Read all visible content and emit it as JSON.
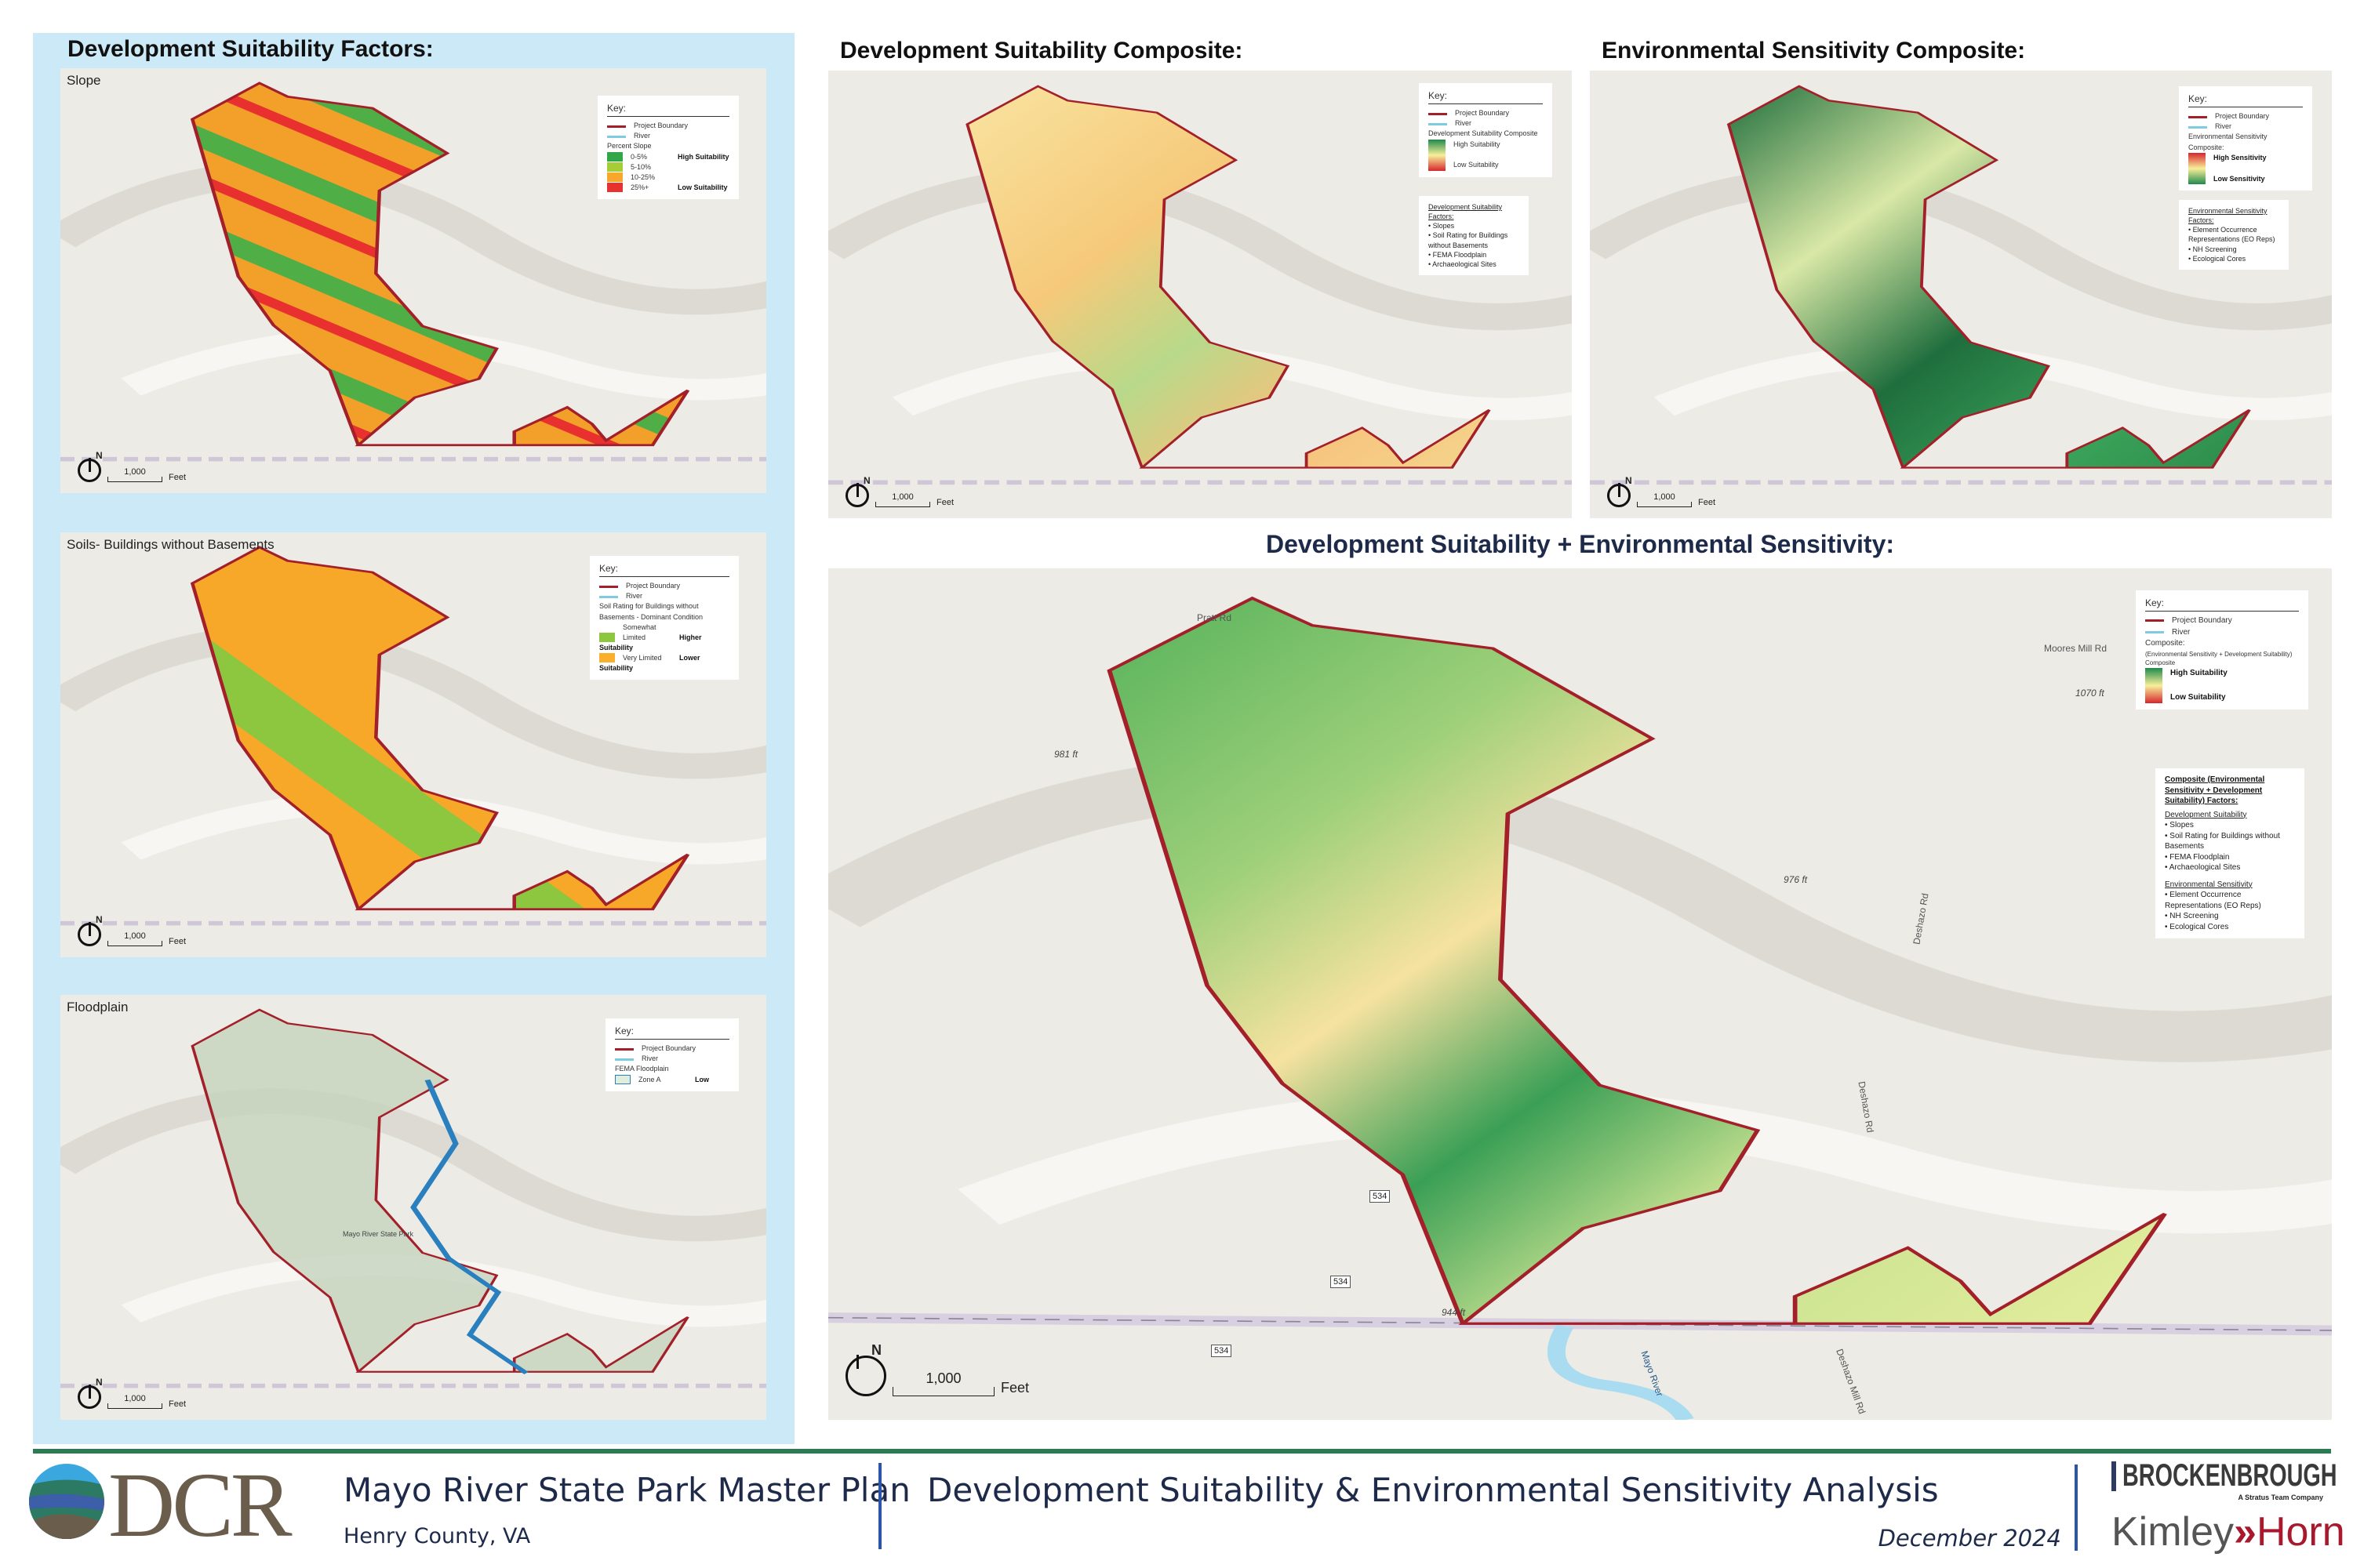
{
  "left_panel": {
    "title": "Development Suitability Factors:",
    "slope": {
      "subtitle": "Slope",
      "key_title": "Key:",
      "boundary": "Project Boundary",
      "river": "River",
      "legend_title": "Percent Slope",
      "classes": [
        {
          "label": "0-5%",
          "note": "High Suitability",
          "color": "#34a64a"
        },
        {
          "label": "5-10%",
          "note": "",
          "color": "#a6cd37"
        },
        {
          "label": "10-25%",
          "note": "",
          "color": "#f6a72c"
        },
        {
          "label": "25%+",
          "note": "Low Suitability",
          "color": "#e8312f"
        }
      ],
      "scale": "1,000",
      "unit": "Feet",
      "north": "N"
    },
    "soils": {
      "subtitle": "Soils- Buildings without Basements",
      "key_title": "Key:",
      "boundary": "Project Boundary",
      "river": "River",
      "legend_title": "Soil Rating for Buildings without Basements - Dominant Condition",
      "classes": [
        {
          "label": "Somewhat Limited",
          "note": "Higher Suitability",
          "color": "#8dc63f"
        },
        {
          "label": "Very Limited",
          "note": "Lower Suitability",
          "color": "#fbb02d"
        }
      ],
      "scale": "1,000",
      "unit": "Feet",
      "north": "N"
    },
    "floodplain": {
      "subtitle": "Floodplain",
      "key_title": "Key:",
      "boundary": "Project Boundary",
      "river": "River",
      "legend_title": "FEMA Floodplain",
      "classes": [
        {
          "label": "Zone A",
          "note": "Low",
          "color": "#2a7fbf"
        }
      ],
      "park_label": "Mayo River State Park",
      "scale": "1,000",
      "unit": "Feet",
      "north": "N"
    }
  },
  "dev_composite": {
    "title": "Development Suitability Composite:",
    "key_title": "Key:",
    "boundary": "Project Boundary",
    "river": "River",
    "legend_title": "Development Suitability Composite",
    "high": "High Suitability",
    "low": "Low Suitability",
    "factors_title": "Development Suitability Factors:",
    "factors": [
      "Slopes",
      "Soil Rating for Buildings without Basements",
      "FEMA Floodplain",
      "Archaeological Sites"
    ],
    "scale": "1,000",
    "unit": "Feet",
    "north": "N"
  },
  "env_composite": {
    "title": "Environmental Sensitivity Composite:",
    "key_title": "Key:",
    "boundary": "Project Boundary",
    "river": "River",
    "legend_title": "Environmental Sensitivity Composite:",
    "high": "High Sensitivity",
    "low": "Low Sensitivity",
    "factors_title": "Environmental Sensitivity Factors:",
    "factors": [
      "Element Occurrence Representations (EO Reps)",
      "NH Screening",
      "Ecological Cores"
    ],
    "scale": "1,000",
    "unit": "Feet",
    "north": "N"
  },
  "combined": {
    "title": "Development Suitability + Environmental Sensitivity:",
    "key_title": "Key:",
    "boundary": "Project Boundary",
    "river": "River",
    "legend_title": "Composite:",
    "legend_sub": "(Environmental Sensitivity + Development Suitability)",
    "legend_sub2": "Composite",
    "high": "High Suitability",
    "low": "Low Suitability",
    "factors_title": "Composite (Environmental Sensitivity + Development Suitability) Factors:",
    "dev_heading": "Development Suitability",
    "dev_factors": [
      "Slopes",
      "Soil Rating for Buildings without Basements",
      "FEMA Floodplain",
      "Archaeological Sites"
    ],
    "env_heading": "Environmental Sensitivity",
    "env_factors": [
      "Element Occurrence Representations (EO Reps)",
      "NH Screening",
      "Ecological Cores"
    ],
    "labels": {
      "road1": "Pratt Rd",
      "road2": "Moores Mill Rd",
      "road3": "Deshazo Rd",
      "road4": "Deshazo Mill Rd",
      "river": "Mayo River",
      "elev1": "981 ft",
      "elev2": "976 ft",
      "elev3": "1070 ft",
      "elev4": "944 ft",
      "route": "534"
    },
    "scale": "1,000",
    "unit": "Feet",
    "north": "N"
  },
  "footer": {
    "logo": "DCR",
    "project": "Mayo River State Park Master Plan",
    "location": "Henry County, VA",
    "sheet_title": "Development Suitability & Environmental Sensitivity Analysis",
    "date": "December 2024",
    "firm1": "BROCKENBROUGH",
    "firm1_tag": "A Stratus Team Company",
    "firm2a": "Kimley",
    "firm2b": "Horn"
  },
  "colors": {
    "boundary": "#a31f2a",
    "river": "#7fcbe0",
    "panel_bg": "#cbe9f6",
    "footer_line": "#2d7a55",
    "divider": "#2c55a8"
  }
}
